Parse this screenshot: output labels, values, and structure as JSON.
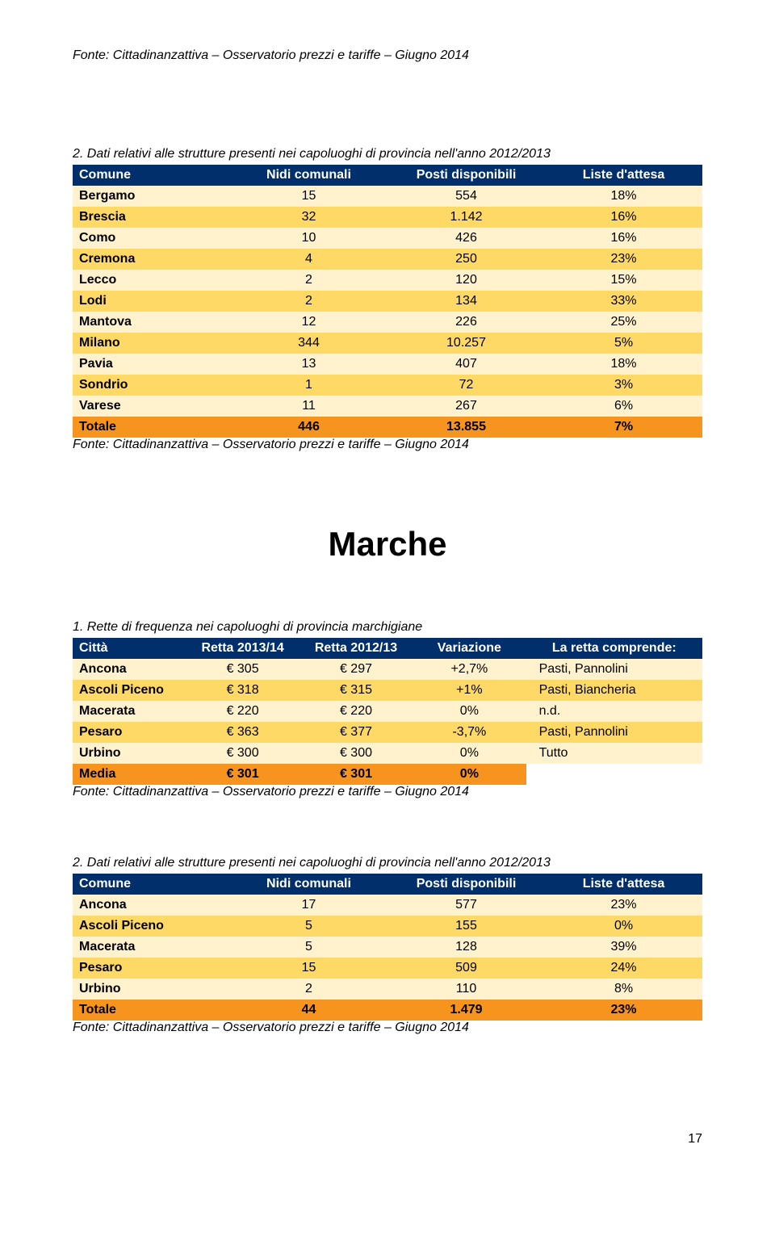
{
  "colors": {
    "header": "#002f6c",
    "odd": "#fff2cc",
    "even": "#ffd966",
    "total": "#f7941d",
    "white": "#ffffff"
  },
  "source_text": "Fonte: Cittadinanzattiva – Osservatorio prezzi e tariffe – Giugno 2014",
  "table_a": {
    "title": "2. Dati relativi alle strutture presenti nei capoluoghi di provincia nell'anno 2012/2013",
    "columns": [
      "Comune",
      "Nidi comunali",
      "Posti disponibili",
      "Liste d'attesa"
    ],
    "col_widths": [
      "25%",
      "25%",
      "25%",
      "25%"
    ],
    "rows": [
      [
        "Bergamo",
        "15",
        "554",
        "18%"
      ],
      [
        "Brescia",
        "32",
        "1.142",
        "16%"
      ],
      [
        "Como",
        "10",
        "426",
        "16%"
      ],
      [
        "Cremona",
        "4",
        "250",
        "23%"
      ],
      [
        "Lecco",
        "2",
        "120",
        "15%"
      ],
      [
        "Lodi",
        "2",
        "134",
        "33%"
      ],
      [
        "Mantova",
        "12",
        "226",
        "25%"
      ],
      [
        "Milano",
        "344",
        "10.257",
        "5%"
      ],
      [
        "Pavia",
        "13",
        "407",
        "18%"
      ],
      [
        "Sondrio",
        "1",
        "72",
        "3%"
      ],
      [
        "Varese",
        "11",
        "267",
        "6%"
      ]
    ],
    "total": [
      "Totale",
      "446",
      "13.855",
      "7%"
    ]
  },
  "region": "Marche",
  "table_b": {
    "title": "1. Rette di frequenza nei capoluoghi di provincia marchigiane",
    "columns": [
      "Città",
      "Retta 2013/14",
      "Retta 2012/13",
      "Variazione",
      "La retta  comprende:"
    ],
    "col_widths": [
      "18%",
      "18%",
      "18%",
      "18%",
      "28%"
    ],
    "rows": [
      [
        "Ancona",
        "€ 305",
        "€ 297",
        "+2,7%",
        "Pasti, Pannolini"
      ],
      [
        "Ascoli Piceno",
        "€ 318",
        "€ 315",
        "+1%",
        "Pasti, Biancheria"
      ],
      [
        "Macerata",
        "€ 220",
        "€ 220",
        "0%",
        "n.d."
      ],
      [
        "Pesaro",
        "€ 363",
        "€ 377",
        "-3,7%",
        "Pasti, Pannolini"
      ],
      [
        "Urbino",
        "€ 300",
        "€ 300",
        "0%",
        "Tutto"
      ]
    ],
    "total": [
      "Media",
      "€ 301",
      "€ 301",
      "0%",
      ""
    ]
  },
  "table_c": {
    "title": "2. Dati relativi alle strutture presenti nei capoluoghi di provincia nell'anno 2012/2013",
    "columns": [
      "Comune",
      "Nidi comunali",
      "Posti disponibili",
      "Liste d'attesa"
    ],
    "col_widths": [
      "25%",
      "25%",
      "25%",
      "25%"
    ],
    "rows": [
      [
        "Ancona",
        "17",
        "577",
        "23%"
      ],
      [
        "Ascoli Piceno",
        "5",
        "155",
        "0%"
      ],
      [
        "Macerata",
        "5",
        "128",
        "39%"
      ],
      [
        "Pesaro",
        "15",
        "509",
        "24%"
      ],
      [
        "Urbino",
        "2",
        "110",
        "8%"
      ]
    ],
    "total": [
      "Totale",
      "44",
      "1.479",
      "23%"
    ]
  },
  "page_number": "17"
}
